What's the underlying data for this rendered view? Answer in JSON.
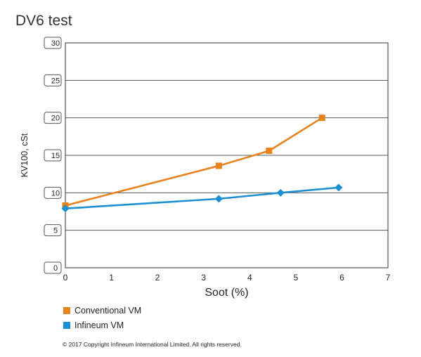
{
  "chart_data": {
    "type": "line",
    "title": "DV6 test",
    "xlabel": "Soot (%)",
    "ylabel": "KV100, cSt",
    "xlim": [
      0,
      7
    ],
    "ylim": [
      0,
      30
    ],
    "x_ticks": [
      "0",
      "1",
      "2",
      "3",
      "4",
      "5",
      "6",
      "7"
    ],
    "y_ticks": [
      "0",
      "5",
      "10",
      "15",
      "20",
      "25",
      "30"
    ],
    "grid": "horizontal",
    "legend_position": "bottom-left",
    "series": [
      {
        "name": "Conventional VM",
        "color": "#e8821e",
        "marker": "square",
        "x": [
          0,
          3.33,
          4.42,
          5.57
        ],
        "y": [
          8.3,
          13.6,
          15.6,
          20.0
        ]
      },
      {
        "name": "Infineum VM",
        "color": "#1c8fd1",
        "marker": "diamond",
        "x": [
          0,
          3.33,
          4.67,
          5.93
        ],
        "y": [
          7.9,
          9.2,
          10.0,
          10.7
        ]
      }
    ]
  },
  "footer": {
    "copyright": "© 2017 Copyright Infineum International Limited. All rights reserved."
  }
}
